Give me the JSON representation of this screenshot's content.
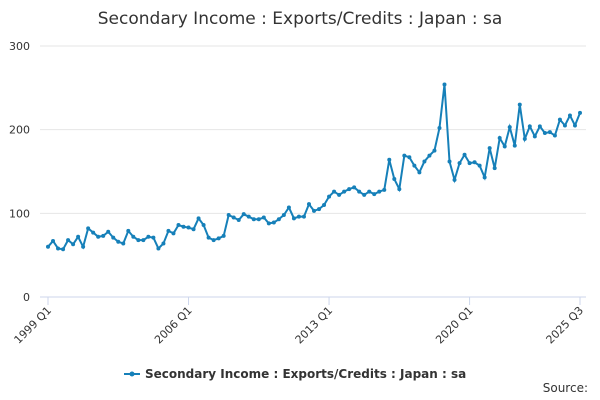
{
  "chart_data": {
    "type": "line",
    "title": "Secondary Income : Exports/Credits : Japan : sa",
    "source": "Source:",
    "categories": [
      "1999 Q1",
      null,
      null,
      null,
      null,
      null,
      null,
      null,
      null,
      null,
      null,
      null,
      null,
      null,
      null,
      null,
      null,
      null,
      null,
      null,
      null,
      null,
      null,
      null,
      null,
      null,
      null,
      null,
      "2006 Q1",
      null,
      null,
      null,
      null,
      null,
      null,
      null,
      null,
      null,
      null,
      null,
      null,
      null,
      null,
      null,
      null,
      null,
      null,
      null,
      null,
      null,
      null,
      null,
      null,
      null,
      null,
      null,
      "2013 Q1",
      null,
      null,
      null,
      null,
      null,
      null,
      null,
      null,
      null,
      null,
      null,
      null,
      null,
      null,
      null,
      null,
      null,
      null,
      null,
      null,
      null,
      null,
      null,
      null,
      null,
      null,
      null,
      "2020 Q1",
      null,
      null,
      null,
      null,
      null,
      null,
      null,
      null,
      null,
      null,
      null,
      null,
      null,
      null,
      null,
      null,
      null,
      null,
      null,
      null,
      null,
      "2025 Q3"
    ],
    "series": [
      {
        "name": "Secondary Income : Exports/Credits : Japan : sa",
        "color": "#1680b9",
        "values": [
          60,
          67,
          58,
          57,
          68,
          63,
          72,
          60,
          82,
          77,
          72,
          73,
          78,
          71,
          66,
          64,
          79,
          72,
          68,
          68,
          72,
          71,
          58,
          64,
          79,
          76,
          86,
          84,
          83,
          81,
          94,
          86,
          71,
          68,
          70,
          73,
          98,
          95,
          92,
          99,
          96,
          93,
          93,
          95,
          88,
          89,
          93,
          98,
          107,
          94,
          96,
          96,
          111,
          103,
          105,
          110,
          120,
          126,
          122,
          126,
          129,
          131,
          126,
          122,
          126,
          123,
          126,
          128,
          164,
          141,
          129,
          169,
          167,
          157,
          149,
          162,
          169,
          175,
          202,
          254,
          162,
          140,
          160,
          170,
          160,
          161,
          157,
          143,
          178,
          154,
          190,
          180,
          203,
          181,
          230,
          189,
          204,
          192,
          204,
          196,
          197,
          193,
          212,
          205,
          217,
          205,
          220
        ]
      }
    ],
    "ylim": [
      0,
      300
    ],
    "yticks": [
      0,
      100,
      200,
      300
    ],
    "grid": true
  }
}
